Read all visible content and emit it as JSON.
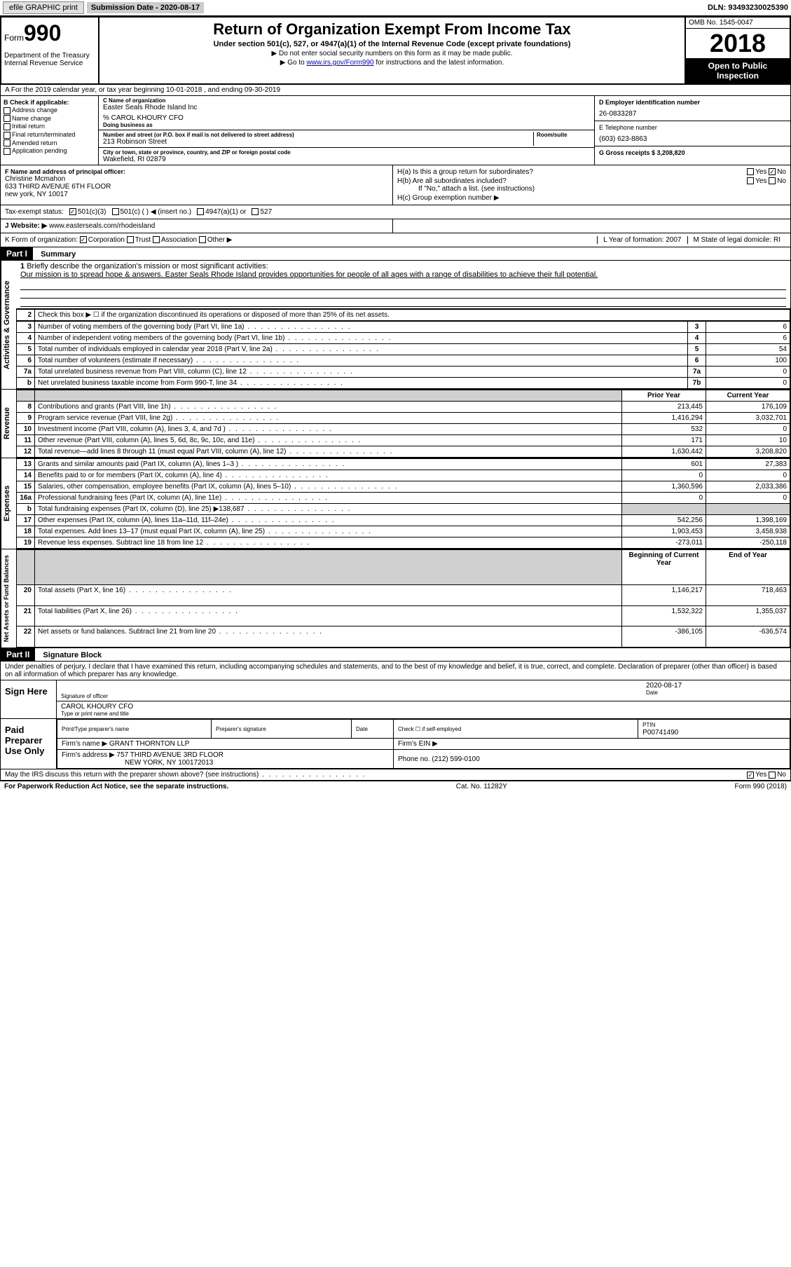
{
  "topbar": {
    "efile": "efile GRAPHIC print",
    "submission_label": "Submission Date - 2020-08-17",
    "dln": "DLN: 93493230025390"
  },
  "header": {
    "form_label": "Form",
    "form_num": "990",
    "dept": "Department of the Treasury\nInternal Revenue Service",
    "title": "Return of Organization Exempt From Income Tax",
    "subtitle": "Under section 501(c), 527, or 4947(a)(1) of the Internal Revenue Code (except private foundations)",
    "note1": "▶ Do not enter social security numbers on this form as it may be made public.",
    "note2_pre": "▶ Go to ",
    "note2_link": "www.irs.gov/Form990",
    "note2_post": " for instructions and the latest information.",
    "omb": "OMB No. 1545-0047",
    "year": "2018",
    "public": "Open to Public Inspection"
  },
  "sectionA": "A For the 2019 calendar year, or tax year beginning 10-01-2018    , and ending 09-30-2019",
  "colB": {
    "hdr": "B Check if applicable:",
    "opts": [
      "Address change",
      "Name change",
      "Initial return",
      "Final return/terminated",
      "Amended return",
      "Application pending"
    ]
  },
  "colC": {
    "name_lbl": "C Name of organization",
    "name": "Easter Seals Rhode Island Inc",
    "care_of": "% CAROL KHOURY CFO",
    "dba_lbl": "Doing business as",
    "addr_lbl": "Number and street (or P.O. box if mail is not delivered to street address)",
    "room_lbl": "Room/suite",
    "addr": "213 Robinson Street",
    "city_lbl": "City or town, state or province, country, and ZIP or foreign postal code",
    "city": "Wakefield, RI  02879"
  },
  "colD": {
    "ein_lbl": "D Employer identification number",
    "ein": "26-0833287",
    "tel_lbl": "E Telephone number",
    "tel": "(603) 623-8863",
    "gross_lbl": "G Gross receipts $ 3,208,820"
  },
  "colF": {
    "lbl": "F  Name and address of principal officer:",
    "name": "Christine Mcmahon",
    "addr1": "633 THIRD AVENUE 6TH FLOOR",
    "addr2": "new york, NY  10017"
  },
  "colH": {
    "ha": "H(a)  Is this a group return for subordinates?",
    "hb": "H(b)  Are all subordinates included?",
    "hb_note": "If \"No,\" attach a list. (see instructions)",
    "hc": "H(c)  Group exemption number ▶"
  },
  "taxStatus": {
    "lbl": "Tax-exempt status:",
    "o1": "501(c)(3)",
    "o2": "501(c) (  ) ◀ (insert no.)",
    "o3": "4947(a)(1) or",
    "o4": "527"
  },
  "rowJ": {
    "j_lbl": "J",
    "website_lbl": "Website: ▶",
    "website": "www.easterseals.com/rhodeisland"
  },
  "rowK": {
    "k": "K Form of organization:",
    "corp": "Corporation",
    "trust": "Trust",
    "assoc": "Association",
    "other": "Other ▶",
    "l": "L Year of formation: 2007",
    "m": "M State of legal domicile: RI"
  },
  "part1": {
    "hdr": "Part I",
    "title": "Summary",
    "q1_lbl": "1",
    "q1": "Briefly describe the organization's mission or most significant activities:",
    "mission": "Our mission is to spread hope & answers. Easter Seals Rhode Island provides opportunities for people of all ages with a range of disabilities to achieve their full potential.",
    "q2": "Check this box ▶ ☐  if the organization discontinued its operations or disposed of more than 25% of its net assets.",
    "vlabels": {
      "gov": "Activities & Governance",
      "rev": "Revenue",
      "exp": "Expenses",
      "net": "Net Assets or Fund Balances"
    }
  },
  "lines": [
    {
      "n": "3",
      "t": "Number of voting members of the governing body (Part VI, line 1a)",
      "box": "3",
      "v": "6"
    },
    {
      "n": "4",
      "t": "Number of independent voting members of the governing body (Part VI, line 1b)",
      "box": "4",
      "v": "6"
    },
    {
      "n": "5",
      "t": "Total number of individuals employed in calendar year 2018 (Part V, line 2a)",
      "box": "5",
      "v": "54"
    },
    {
      "n": "6",
      "t": "Total number of volunteers (estimate if necessary)",
      "box": "6",
      "v": "100"
    },
    {
      "n": "7a",
      "t": "Total unrelated business revenue from Part VIII, column (C), line 12",
      "box": "7a",
      "v": "0"
    },
    {
      "n": "b",
      "t": "Net unrelated business taxable income from Form 990-T, line 34",
      "box": "7b",
      "v": "0"
    }
  ],
  "yearCols": {
    "prior": "Prior Year",
    "curr": "Current Year"
  },
  "revLines": [
    {
      "n": "8",
      "t": "Contributions and grants (Part VIII, line 1h)",
      "p": "213,445",
      "c": "176,109"
    },
    {
      "n": "9",
      "t": "Program service revenue (Part VIII, line 2g)",
      "p": "1,416,294",
      "c": "3,032,701"
    },
    {
      "n": "10",
      "t": "Investment income (Part VIII, column (A), lines 3, 4, and 7d )",
      "p": "532",
      "c": "0"
    },
    {
      "n": "11",
      "t": "Other revenue (Part VIII, column (A), lines 5, 6d, 8c, 9c, 10c, and 11e)",
      "p": "171",
      "c": "10"
    },
    {
      "n": "12",
      "t": "Total revenue—add lines 8 through 11 (must equal Part VIII, column (A), line 12)",
      "p": "1,630,442",
      "c": "3,208,820"
    }
  ],
  "expLines": [
    {
      "n": "13",
      "t": "Grants and similar amounts paid (Part IX, column (A), lines 1–3 )",
      "p": "601",
      "c": "27,383"
    },
    {
      "n": "14",
      "t": "Benefits paid to or for members (Part IX, column (A), line 4)",
      "p": "0",
      "c": "0"
    },
    {
      "n": "15",
      "t": "Salaries, other compensation, employee benefits (Part IX, column (A), lines 5–10)",
      "p": "1,360,596",
      "c": "2,033,386"
    },
    {
      "n": "16a",
      "t": "Professional fundraising fees (Part IX, column (A), line 11e)",
      "p": "0",
      "c": "0"
    },
    {
      "n": "b",
      "t": "Total fundraising expenses (Part IX, column (D), line 25) ▶138,687",
      "p": "",
      "c": "",
      "shade": true
    },
    {
      "n": "17",
      "t": "Other expenses (Part IX, column (A), lines 11a–11d, 11f–24e)",
      "p": "542,256",
      "c": "1,398,169"
    },
    {
      "n": "18",
      "t": "Total expenses. Add lines 13–17 (must equal Part IX, column (A), line 25)",
      "p": "1,903,453",
      "c": "3,458,938"
    },
    {
      "n": "19",
      "t": "Revenue less expenses. Subtract line 18 from line 12",
      "p": "-273,011",
      "c": "-250,118"
    }
  ],
  "netCols": {
    "begin": "Beginning of Current Year",
    "end": "End of Year"
  },
  "netLines": [
    {
      "n": "20",
      "t": "Total assets (Part X, line 16)",
      "p": "1,146,217",
      "c": "718,463"
    },
    {
      "n": "21",
      "t": "Total liabilities (Part X, line 26)",
      "p": "1,532,322",
      "c": "1,355,037"
    },
    {
      "n": "22",
      "t": "Net assets or fund balances. Subtract line 21 from line 20",
      "p": "-386,105",
      "c": "-636,574"
    }
  ],
  "part2": {
    "hdr": "Part II",
    "title": "Signature Block"
  },
  "perjury": "Under penalties of perjury, I declare that I have examined this return, including accompanying schedules and statements, and to the best of my knowledge and belief, it is true, correct, and complete. Declaration of preparer (other than officer) is based on all information of which preparer has any knowledge.",
  "sign": {
    "lbl": "Sign Here",
    "sig_lbl": "Signature of officer",
    "date_lbl": "Date",
    "date": "2020-08-17",
    "name": "CAROL KHOURY CFO",
    "name_lbl": "Type or print name and title"
  },
  "prep": {
    "lbl": "Paid Preparer Use Only",
    "c1": "Print/Type preparer's name",
    "c2": "Preparer's signature",
    "c3": "Date",
    "c4_lbl": "Check ☐ if self-employed",
    "c5_lbl": "PTIN",
    "ptin": "P00741490",
    "firm_lbl": "Firm's name    ▶",
    "firm": "GRANT THORNTON LLP",
    "ein_lbl": "Firm's EIN ▶",
    "addr_lbl": "Firm's address ▶",
    "addr1": "757 THIRD AVENUE 3RD FLOOR",
    "addr2": "NEW YORK, NY  100172013",
    "phone_lbl": "Phone no.",
    "phone": "(212) 599-0100"
  },
  "discuss": "May the IRS discuss this return with the preparer shown above? (see instructions)",
  "footer": {
    "left": "For Paperwork Reduction Act Notice, see the separate instructions.",
    "mid": "Cat. No. 11282Y",
    "right": "Form 990 (2018)"
  },
  "yesno": {
    "yes": "Yes",
    "no": "No"
  }
}
